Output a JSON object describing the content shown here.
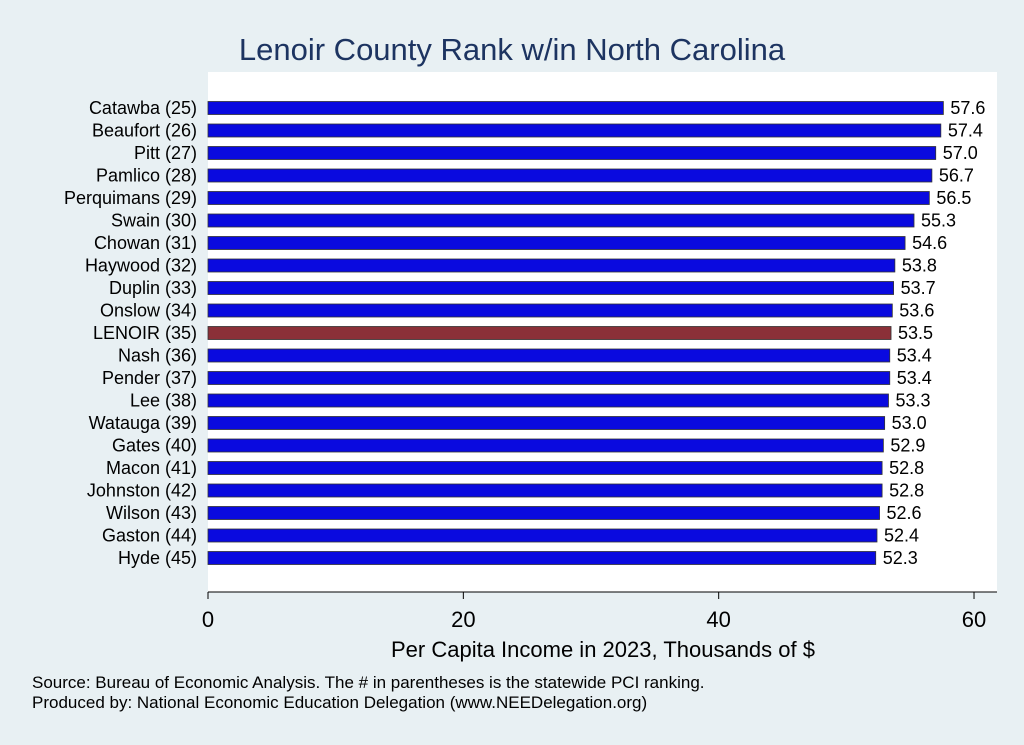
{
  "chart_data": {
    "type": "bar",
    "orientation": "horizontal",
    "title": "Lenoir County Rank w/in North Carolina",
    "xlabel": "Per Capita Income in 2023, Thousands of $",
    "ylabel": "",
    "xlim": [
      0,
      61.8
    ],
    "xticks": [
      0,
      20,
      40,
      60
    ],
    "grid": false,
    "categories": [
      "Catawba (25)",
      "Beaufort (26)",
      "Pitt (27)",
      "Pamlico (28)",
      "Perquimans (29)",
      "Swain (30)",
      "Chowan (31)",
      "Haywood (32)",
      "Duplin (33)",
      "Onslow (34)",
      "LENOIR (35)",
      "Nash (36)",
      "Pender (37)",
      "Lee (38)",
      "Watauga (39)",
      "Gates (40)",
      "Macon (41)",
      "Johnston (42)",
      "Wilson (43)",
      "Gaston (44)",
      "Hyde (45)"
    ],
    "values": [
      57.6,
      57.4,
      57.0,
      56.7,
      56.5,
      55.3,
      54.6,
      53.8,
      53.7,
      53.6,
      53.5,
      53.4,
      53.4,
      53.3,
      53.0,
      52.9,
      52.8,
      52.8,
      52.6,
      52.4,
      52.3
    ],
    "value_labels": [
      "57.6",
      "57.4",
      "57.0",
      "56.7",
      "56.5",
      "55.3",
      "54.6",
      "53.8",
      "53.7",
      "53.6",
      "53.5",
      "53.4",
      "53.4",
      "53.3",
      "53.0",
      "52.9",
      "52.8",
      "52.8",
      "52.6",
      "52.4",
      "52.3"
    ],
    "highlight_category": "LENOIR (35)",
    "colors": {
      "bar": "#0a0adf",
      "highlight": "#8b3038",
      "background": "#e8f0f3",
      "plot_background": "#ffffff",
      "title": "#1d3461"
    },
    "notes": [
      "Source: Bureau of Economic Analysis. The # in parentheses is the statewide PCI ranking.",
      "Produced by: National Economic Education Delegation (www.NEEDelegation.org)"
    ]
  }
}
